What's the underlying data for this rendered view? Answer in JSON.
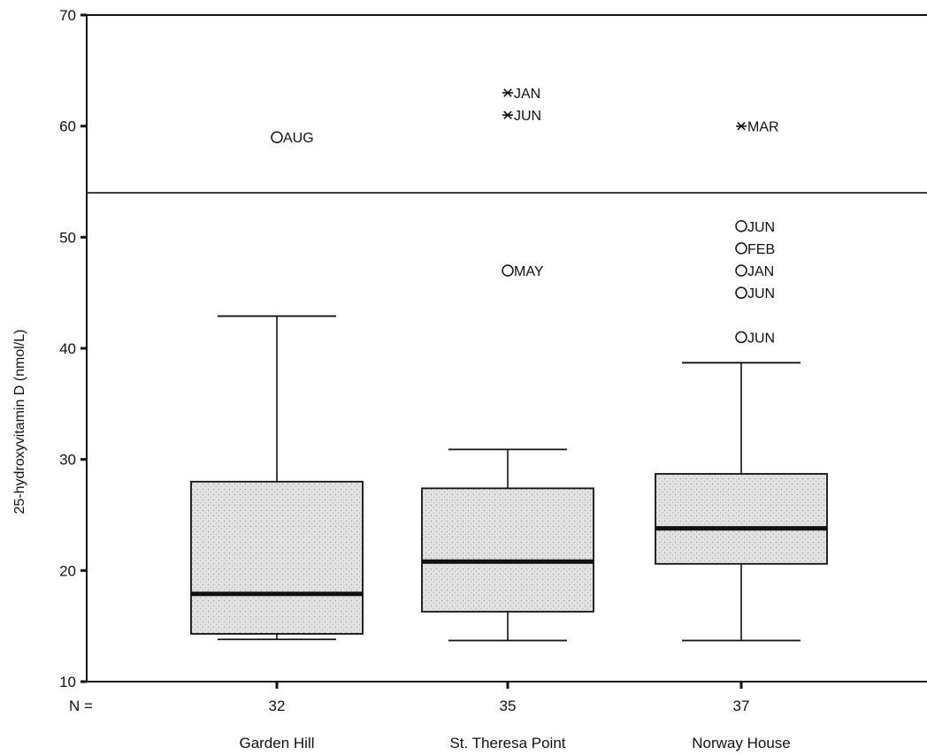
{
  "chart_data": {
    "type": "boxplot",
    "ylabel": "25-hydroxyvitamin D (nmol/L)",
    "ylim": [
      10,
      70
    ],
    "yticks": [
      10,
      20,
      30,
      40,
      50,
      60,
      70
    ],
    "reference_line": 54,
    "n_prefix": "N =",
    "categories": [
      "Garden Hill",
      "St. Theresa Point",
      "Norway House"
    ],
    "n": [
      "32",
      "35",
      "37"
    ],
    "boxes": [
      {
        "whisker_low": 13.8,
        "q1": 14.3,
        "median": 17.9,
        "q3": 28.0,
        "whisker_high": 42.9
      },
      {
        "whisker_low": 13.7,
        "q1": 16.3,
        "median": 20.8,
        "q3": 27.4,
        "whisker_high": 30.9
      },
      {
        "whisker_low": 13.7,
        "q1": 20.6,
        "median": 23.8,
        "q3": 28.7,
        "whisker_high": 38.7
      }
    ],
    "outliers": [
      {
        "group": 0,
        "value": 59.0,
        "label": "AUG",
        "marker": "circle"
      },
      {
        "group": 1,
        "value": 63.0,
        "label": "JAN",
        "marker": "star"
      },
      {
        "group": 1,
        "value": 61.0,
        "label": "JUN",
        "marker": "star"
      },
      {
        "group": 1,
        "value": 47.0,
        "label": "MAY",
        "marker": "circle"
      },
      {
        "group": 2,
        "value": 60.0,
        "label": "MAR",
        "marker": "star"
      },
      {
        "group": 2,
        "value": 51.0,
        "label": "JUN",
        "marker": "circle"
      },
      {
        "group": 2,
        "value": 49.0,
        "label": "FEB",
        "marker": "circle"
      },
      {
        "group": 2,
        "value": 47.0,
        "label": "JAN",
        "marker": "circle"
      },
      {
        "group": 2,
        "value": 45.0,
        "label": "JUN",
        "marker": "circle"
      },
      {
        "group": 2,
        "value": 41.0,
        "label": "JUN",
        "marker": "circle"
      }
    ],
    "colors": {
      "box_fill": "#dcdcdc",
      "stroke": "#111111"
    }
  }
}
